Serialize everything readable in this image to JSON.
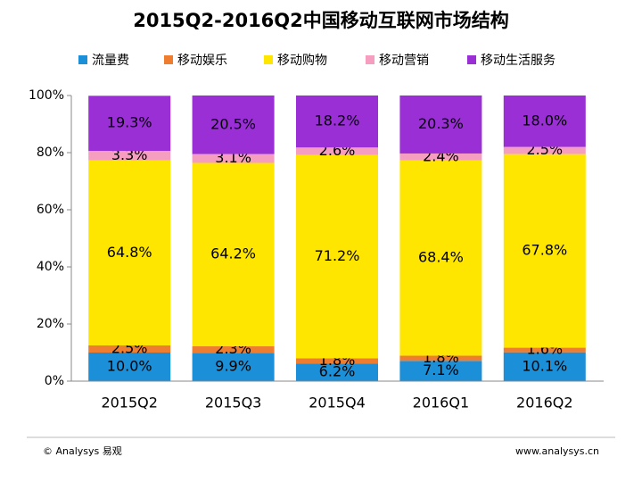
{
  "chart_data": {
    "type": "stacked_bar",
    "title": "2015Q2-2016Q2中国移动互联网市场结构",
    "categories": [
      "2015Q2",
      "2015Q3",
      "2015Q4",
      "2016Q1",
      "2016Q2"
    ],
    "series": [
      {
        "name": "流量费",
        "color": "#1b8fd8",
        "values": [
          10.0,
          9.9,
          6.2,
          7.1,
          10.1
        ],
        "value_labels": [
          "10.0%",
          "9.9%",
          "6.2%",
          "7.1%",
          "10.1%"
        ]
      },
      {
        "name": "移动娱乐",
        "color": "#ee7d2f",
        "values": [
          2.5,
          2.3,
          1.8,
          1.8,
          1.6
        ],
        "value_labels": [
          "2.5%",
          "2.3%",
          "1.8%",
          "1.8%",
          "1.6%"
        ]
      },
      {
        "name": "移动购物",
        "color": "#ffe600",
        "values": [
          64.8,
          64.2,
          71.2,
          68.4,
          67.8
        ],
        "value_labels": [
          "64.8%",
          "64.2%",
          "71.2%",
          "68.4%",
          "67.8%"
        ]
      },
      {
        "name": "移动营销",
        "color": "#f59ec0",
        "values": [
          3.3,
          3.1,
          2.6,
          2.4,
          2.5
        ],
        "value_labels": [
          "3.3%",
          "3.1%",
          "2.6%",
          "2.4%",
          "2.5%"
        ]
      },
      {
        "name": "移动生活服务",
        "color": "#9a2fd6",
        "values": [
          19.3,
          20.5,
          18.2,
          20.3,
          18.0
        ],
        "value_labels": [
          "19.3%",
          "20.5%",
          "18.2%",
          "20.3%",
          "18.0%"
        ]
      }
    ],
    "ylim": [
      0,
      100
    ],
    "yticks": [
      {
        "value": 0,
        "label": "0%"
      },
      {
        "value": 20,
        "label": "20%"
      },
      {
        "value": 40,
        "label": "40%"
      },
      {
        "value": 60,
        "label": "60%"
      },
      {
        "value": 80,
        "label": "80%"
      },
      {
        "value": 100,
        "label": "100%"
      }
    ],
    "legend": "top",
    "footer_left": "© Analysys 易观",
    "footer_right": "www.analysys.cn"
  }
}
